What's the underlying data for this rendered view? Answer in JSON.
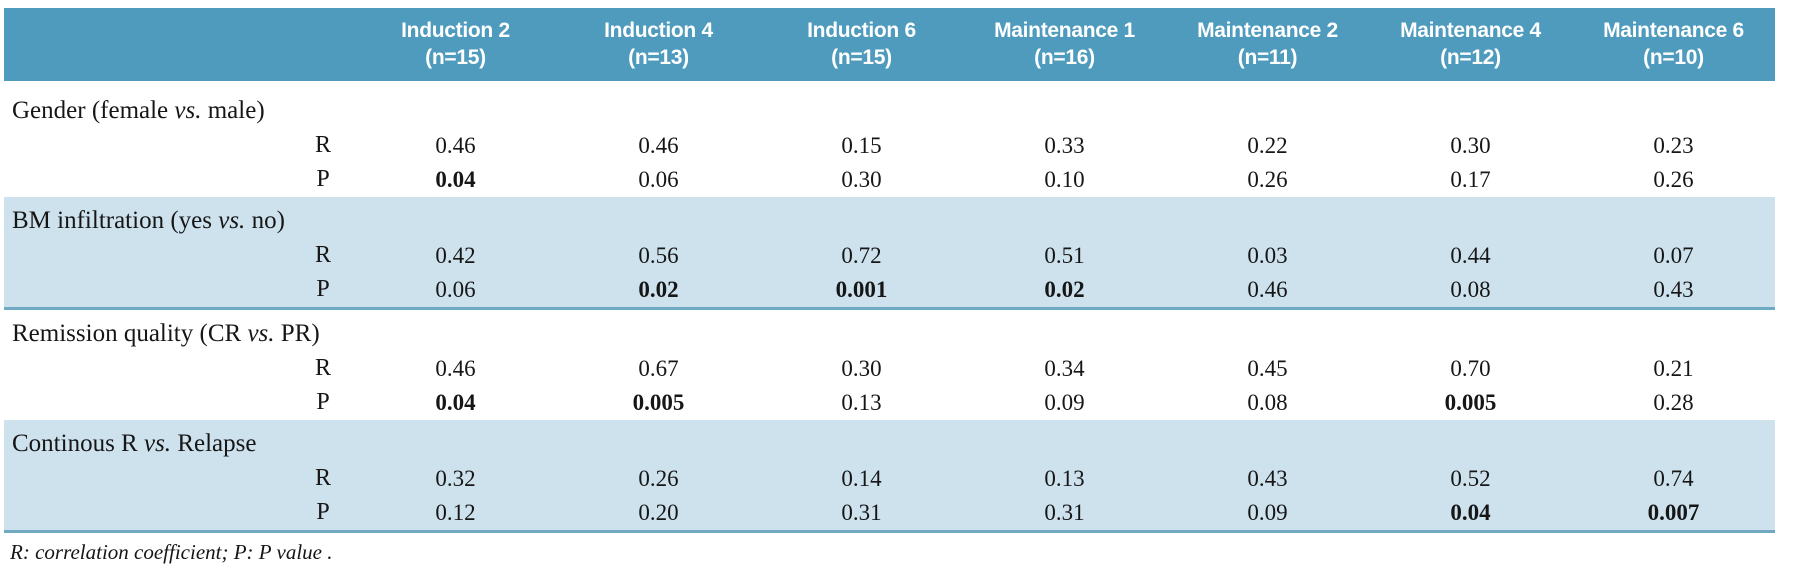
{
  "header": {
    "columns": [
      {
        "line1": "Induction 2",
        "line2": "(n=15)"
      },
      {
        "line1": "Induction 4",
        "line2": "(n=13)"
      },
      {
        "line1": "Induction 6",
        "line2": "(n=15)"
      },
      {
        "line1": "Maintenance 1",
        "line2": "(n=16)"
      },
      {
        "line1": "Maintenance 2",
        "line2": "(n=11)"
      },
      {
        "line1": "Maintenance 4",
        "line2": "(n=12)"
      },
      {
        "line1": "Maintenance 6",
        "line2": "(n=10)"
      }
    ]
  },
  "sections": [
    {
      "label": {
        "prefix": "Gender (female ",
        "vs": "vs.",
        "suffix": " male)"
      },
      "rows": [
        {
          "stat": "R",
          "values": [
            "0.46",
            "0.46",
            "0.15",
            "0.33",
            "0.22",
            "0.30",
            "0.23"
          ]
        },
        {
          "stat": "P",
          "values": [
            "0.04",
            "0.06",
            "0.30",
            "0.10",
            "0.26",
            "0.17",
            "0.26"
          ],
          "bold": [
            true,
            false,
            false,
            false,
            false,
            false,
            false
          ]
        }
      ]
    },
    {
      "label": {
        "prefix": "BM infiltration (yes ",
        "vs": "vs.",
        "suffix": " no)"
      },
      "rows": [
        {
          "stat": "R",
          "values": [
            "0.42",
            "0.56",
            "0.72",
            "0.51",
            "0.03",
            "0.44",
            "0.07"
          ]
        },
        {
          "stat": "P",
          "values": [
            "0.06",
            "0.02",
            "0.001",
            "0.02",
            "0.46",
            "0.08",
            "0.43"
          ],
          "bold": [
            false,
            true,
            true,
            true,
            false,
            false,
            false
          ]
        }
      ]
    },
    {
      "label": {
        "prefix": "Remission quality (CR ",
        "vs": "vs.",
        "suffix": " PR)"
      },
      "rows": [
        {
          "stat": "R",
          "values": [
            "0.46",
            "0.67",
            "0.30",
            "0.34",
            "0.45",
            "0.70",
            "0.21"
          ]
        },
        {
          "stat": "P",
          "values": [
            "0.04",
            "0.005",
            "0.13",
            "0.09",
            "0.08",
            "0.005",
            "0.28"
          ],
          "bold": [
            true,
            true,
            false,
            false,
            false,
            true,
            false
          ]
        }
      ]
    },
    {
      "label": {
        "prefix": "Continous R ",
        "vs": "vs.",
        "suffix": " Relapse"
      },
      "rows": [
        {
          "stat": "R",
          "values": [
            "0.32",
            "0.26",
            "0.14",
            "0.13",
            "0.43",
            "0.52",
            "0.74"
          ]
        },
        {
          "stat": "P",
          "values": [
            "0.12",
            "0.20",
            "0.31",
            "0.31",
            "0.09",
            "0.04",
            "0.007"
          ],
          "bold": [
            false,
            false,
            false,
            false,
            false,
            true,
            true
          ]
        }
      ]
    }
  ],
  "footnote": "R: correlation coefficient; P: P value .",
  "colors": {
    "header_bg": "#4e9bbd",
    "band_bg": "#cee2ee",
    "band_border": "#6fa9c2",
    "text": "#161616"
  }
}
